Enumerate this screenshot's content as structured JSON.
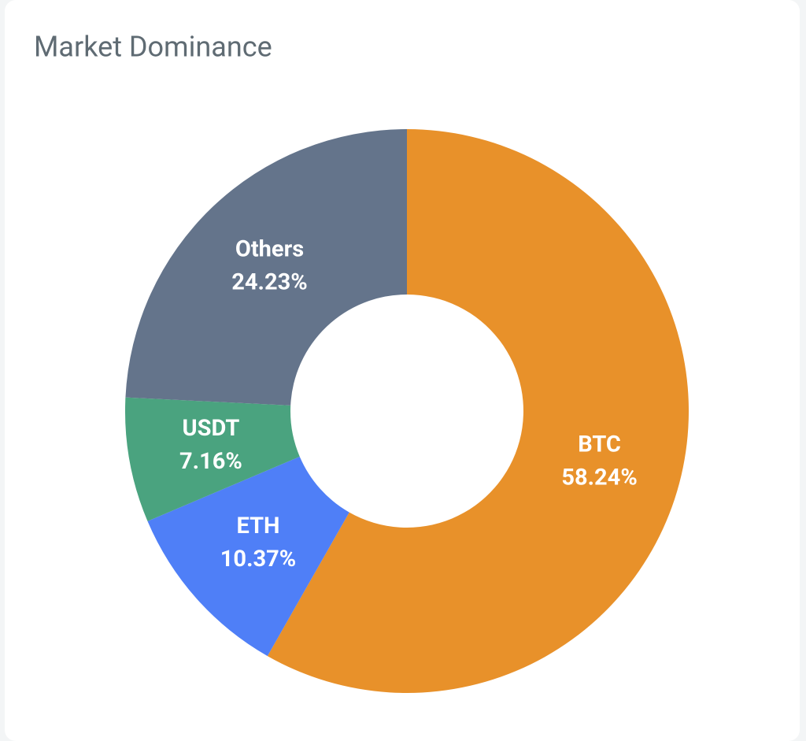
{
  "chart_data": {
    "type": "donut",
    "title": "Market Dominance",
    "categories": [
      "BTC",
      "ETH",
      "USDT",
      "Others"
    ],
    "values": [
      58.24,
      10.37,
      7.16,
      24.23
    ],
    "value_labels": [
      "58.24%",
      "10.37%",
      "7.16%",
      "24.23%"
    ],
    "colors": [
      "#e8912a",
      "#4f7ff7",
      "#4aa37f",
      "#64748b"
    ]
  }
}
